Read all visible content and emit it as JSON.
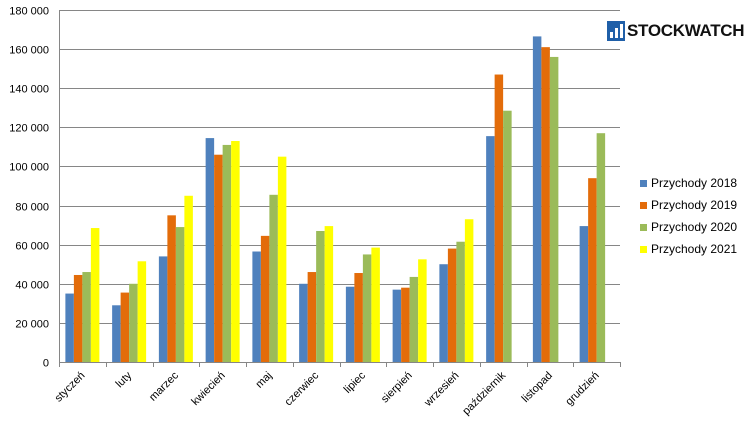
{
  "chart_data": {
    "type": "bar",
    "categories": [
      "styczeń",
      "luty",
      "marzec",
      "kwiecień",
      "maj",
      "czerwiec",
      "lipiec",
      "sierpień",
      "wrzesień",
      "październik",
      "listopad",
      "grudzień"
    ],
    "series": [
      {
        "name": "Przychody 2018",
        "color": "#4f81bd",
        "values": [
          35000,
          29000,
          54000,
          114500,
          56500,
          40000,
          38500,
          37000,
          50000,
          115500,
          166500,
          69500
        ]
      },
      {
        "name": "Przychody 2019",
        "color": "#e36c0a",
        "values": [
          44500,
          35500,
          75000,
          106000,
          64500,
          46000,
          45500,
          38000,
          58000,
          147000,
          161000,
          94000
        ]
      },
      {
        "name": "Przychody 2020",
        "color": "#9bbb59",
        "values": [
          46000,
          40000,
          69000,
          111000,
          85500,
          67000,
          55000,
          43500,
          61500,
          128500,
          156000,
          117000
        ]
      },
      {
        "name": "Przychody 2021",
        "color": "#ffff00",
        "values": [
          68500,
          51500,
          85000,
          113000,
          105000,
          69500,
          58500,
          52500,
          73000,
          null,
          null,
          null
        ]
      }
    ],
    "y_ticks": [
      "0",
      "20 000",
      "40 000",
      "60 000",
      "80 000",
      "100 000",
      "120 000",
      "140 000",
      "160 000",
      "180 000"
    ],
    "ylim": [
      0,
      180000
    ],
    "grid": true,
    "legend_position": "right"
  },
  "logo": {
    "text": "STOCKWATCH",
    "icon": "bar-chart-icon"
  }
}
